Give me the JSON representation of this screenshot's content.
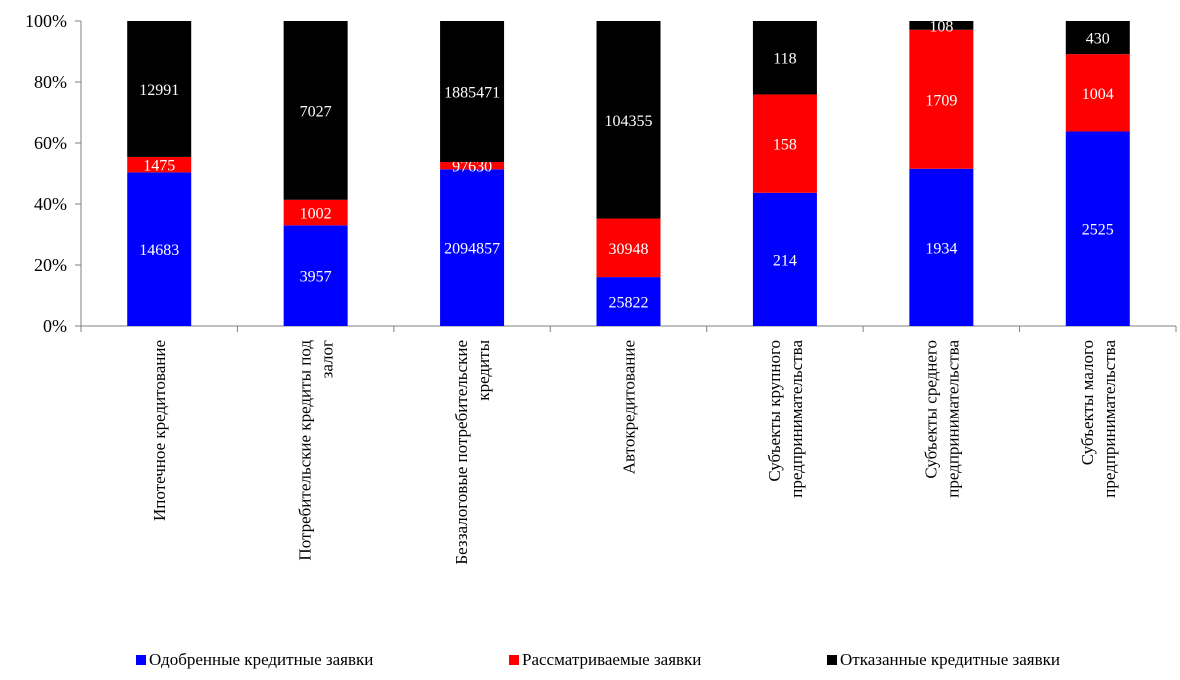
{
  "chart_data": {
    "type": "bar",
    "stacked": true,
    "normalized": true,
    "title": "",
    "xlabel": "",
    "ylabel": "",
    "ylim": [
      0,
      100
    ],
    "y_ticks": [
      "0%",
      "20%",
      "40%",
      "60%",
      "80%",
      "100%"
    ],
    "grid": false,
    "legend_position": "bottom",
    "categories": [
      [
        "Ипотечное кредитование"
      ],
      [
        "Потребительские кредиты под",
        "залог"
      ],
      [
        "Беззалоговые потребительские",
        "кредиты"
      ],
      [
        "Автокредитование"
      ],
      [
        "Субъекты крупного",
        "предпринимательства"
      ],
      [
        "Субъекты среднего",
        "предпринимательства"
      ],
      [
        "Субъекты малого",
        "предпринимательства"
      ]
    ],
    "series": [
      {
        "name": "Одобренные кредитные заявки",
        "color": "#0000ff",
        "label_color": "#ffffff",
        "values": [
          14683,
          3957,
          2094857,
          25822,
          214,
          1934,
          2525
        ]
      },
      {
        "name": "Рассматриваемые заявки",
        "color": "#ff0000",
        "label_color": "#ffffff",
        "values": [
          1475,
          1002,
          97630,
          30948,
          158,
          1709,
          1004
        ]
      },
      {
        "name": "Отказанные кредитные заявки",
        "color": "#000000",
        "label_color": "#ffffff",
        "values": [
          12991,
          7027,
          1885471,
          104355,
          118,
          108,
          430
        ]
      }
    ]
  }
}
